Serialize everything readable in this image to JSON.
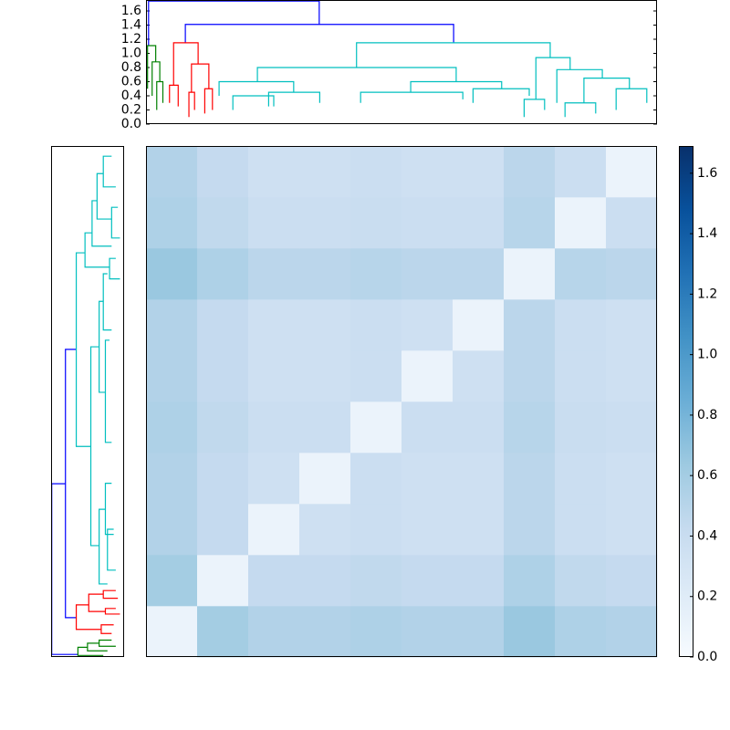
{
  "chart_data": {
    "type": "clustermap",
    "dendrogram": {
      "ylim": [
        0,
        1.755
      ],
      "yticks": [
        {
          "value": 0,
          "label": "0.0"
        },
        0.2,
        0.4,
        0.6,
        0.8,
        {
          "value": 1,
          "label": "1.0"
        },
        1.2,
        1.4,
        1.6
      ],
      "xlim": [
        0,
        100
      ],
      "links": [
        {
          "x": [
            0.5,
            0.5,
            33.9,
            33.9
          ],
          "y": [
            1.11,
            1.74,
            1.74,
            1.41
          ],
          "color": "#0000ff"
        },
        {
          "x": [
            7.7,
            7.7,
            60.2,
            60.2
          ],
          "y": [
            1.15,
            1.41,
            1.41,
            1.15
          ],
          "color": "#0000ff"
        },
        {
          "x": [
            0.3,
            0.3,
            1.9,
            1.9
          ],
          "y": [
            0.5,
            1.11,
            1.11,
            0.88
          ],
          "color": "#008000"
        },
        {
          "x": [
            1.2,
            1.2,
            2.7,
            2.7
          ],
          "y": [
            0.4,
            0.88,
            0.88,
            0.6
          ],
          "color": "#008000"
        },
        {
          "x": [
            2.1,
            2.1,
            3.3,
            3.3
          ],
          "y": [
            0.2,
            0.6,
            0.6,
            0.3
          ],
          "color": "#008000"
        },
        {
          "x": [
            5.4,
            5.4,
            10.2,
            10.2
          ],
          "y": [
            0.55,
            1.15,
            1.15,
            0.85
          ],
          "color": "#ff0000"
        },
        {
          "x": [
            4.6,
            4.6,
            6.3,
            6.3
          ],
          "y": [
            0.3,
            0.55,
            0.55,
            0.25
          ],
          "color": "#ff0000"
        },
        {
          "x": [
            8.9,
            8.9,
            12.3,
            12.3
          ],
          "y": [
            0.45,
            0.85,
            0.85,
            0.5
          ],
          "color": "#ff0000"
        },
        {
          "x": [
            8.4,
            8.4,
            9.5,
            9.5
          ],
          "y": [
            0.1,
            0.45,
            0.45,
            0.2
          ],
          "color": "#ff0000"
        },
        {
          "x": [
            11.5,
            11.5,
            13,
            13
          ],
          "y": [
            0.15,
            0.5,
            0.5,
            0.2
          ],
          "color": "#ff0000"
        },
        {
          "x": [
            41.2,
            41.2,
            79.1,
            79.1
          ],
          "y": [
            0.8,
            1.15,
            1.15,
            0.94
          ],
          "color": "#00bfbf"
        },
        {
          "x": [
            21.8,
            21.8,
            60.7,
            60.7
          ],
          "y": [
            0.6,
            0.8,
            0.8,
            0.6
          ],
          "color": "#00bfbf"
        },
        {
          "x": [
            76.3,
            76.3,
            83,
            83
          ],
          "y": [
            0.35,
            0.94,
            0.94,
            0.77
          ],
          "color": "#00bfbf"
        },
        {
          "x": [
            14.3,
            14.3,
            28.9,
            28.9
          ],
          "y": [
            0.4,
            0.6,
            0.6,
            0.45
          ],
          "color": "#00bfbf"
        },
        {
          "x": [
            51.8,
            51.8,
            69.6,
            69.6
          ],
          "y": [
            0.45,
            0.6,
            0.6,
            0.5
          ],
          "color": "#00bfbf"
        },
        {
          "x": [
            80.4,
            80.4,
            89.3,
            89.3
          ],
          "y": [
            0.3,
            0.77,
            0.77,
            0.65
          ],
          "color": "#00bfbf"
        },
        {
          "x": [
            85.7,
            85.7,
            94.6,
            94.6
          ],
          "y": [
            0.3,
            0.65,
            0.65,
            0.5
          ],
          "color": "#00bfbf"
        },
        {
          "x": [
            92,
            92,
            98,
            98
          ],
          "y": [
            0.2,
            0.5,
            0.5,
            0.3
          ],
          "color": "#00bfbf"
        },
        {
          "x": [
            17,
            17,
            25,
            25
          ],
          "y": [
            0.2,
            0.4,
            0.4,
            0.25
          ],
          "color": "#00bfbf"
        },
        {
          "x": [
            24,
            24,
            34,
            34
          ],
          "y": [
            0.25,
            0.45,
            0.45,
            0.3
          ],
          "color": "#00bfbf"
        },
        {
          "x": [
            42,
            42,
            62,
            62
          ],
          "y": [
            0.3,
            0.45,
            0.45,
            0.35
          ],
          "color": "#00bfbf"
        },
        {
          "x": [
            64,
            64,
            75,
            75
          ],
          "y": [
            0.3,
            0.5,
            0.5,
            0.4
          ],
          "color": "#00bfbf"
        },
        {
          "x": [
            74,
            74,
            78,
            78
          ],
          "y": [
            0.1,
            0.35,
            0.35,
            0.2
          ],
          "color": "#00bfbf"
        },
        {
          "x": [
            82,
            82,
            88,
            88
          ],
          "y": [
            0.1,
            0.3,
            0.3,
            0.15
          ],
          "color": "#00bfbf"
        }
      ]
    },
    "heatmap": {
      "values": [
        [
          0.1,
          0.6,
          0.53,
          0.53,
          0.55,
          0.53,
          0.53,
          0.65,
          0.55,
          0.53
        ],
        [
          0.6,
          0.1,
          0.43,
          0.43,
          0.45,
          0.43,
          0.43,
          0.55,
          0.45,
          0.43
        ],
        [
          0.53,
          0.43,
          0.1,
          0.35,
          0.38,
          0.35,
          0.35,
          0.48,
          0.38,
          0.35
        ],
        [
          0.53,
          0.43,
          0.35,
          0.1,
          0.38,
          0.35,
          0.35,
          0.48,
          0.38,
          0.35
        ],
        [
          0.55,
          0.45,
          0.38,
          0.38,
          0.1,
          0.38,
          0.38,
          0.5,
          0.4,
          0.38
        ],
        [
          0.53,
          0.43,
          0.35,
          0.35,
          0.38,
          0.1,
          0.35,
          0.48,
          0.38,
          0.35
        ],
        [
          0.53,
          0.43,
          0.35,
          0.35,
          0.38,
          0.35,
          0.1,
          0.48,
          0.38,
          0.35
        ],
        [
          0.65,
          0.55,
          0.48,
          0.48,
          0.5,
          0.48,
          0.48,
          0.1,
          0.5,
          0.48
        ],
        [
          0.55,
          0.45,
          0.38,
          0.38,
          0.4,
          0.38,
          0.38,
          0.5,
          0.1,
          0.38
        ],
        [
          0.53,
          0.43,
          0.35,
          0.35,
          0.38,
          0.35,
          0.35,
          0.48,
          0.38,
          0.1
        ]
      ],
      "colormap": [
        "#f7fbff",
        "#deebf7",
        "#c6dbef",
        "#9ecae1",
        "#6baed6",
        "#4292c6",
        "#2171b5",
        "#08519c",
        "#08306b"
      ],
      "clim": [
        0,
        1.69
      ],
      "cticks": [
        {
          "value": 0,
          "label": "0.0"
        },
        0.2,
        0.4,
        0.6,
        0.8,
        {
          "value": 1,
          "label": "1.0"
        },
        1.2,
        1.4,
        1.6
      ]
    }
  }
}
